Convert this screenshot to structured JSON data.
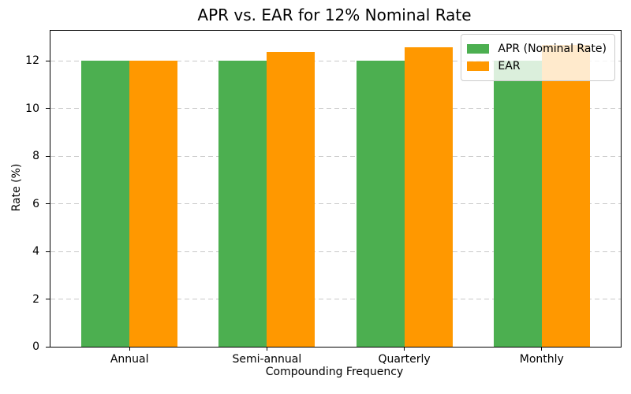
{
  "figure": {
    "background": "#ffffff"
  },
  "chart_data": {
    "type": "bar",
    "title": "APR vs. EAR for 12% Nominal Rate",
    "xlabel": "Compounding Frequency",
    "ylabel": "Rate (%)",
    "categories": [
      "Annual",
      "Semi-annual",
      "Quarterly",
      "Monthly"
    ],
    "series": [
      {
        "name": "APR (Nominal Rate)",
        "color": "#4caf50",
        "values": [
          12.0,
          12.0,
          12.0,
          12.0
        ]
      },
      {
        "name": "EAR",
        "color": "#ff9800",
        "values": [
          12.0,
          12.36,
          12.55,
          12.68
        ]
      }
    ],
    "ylim": [
      0,
      13.26
    ],
    "xlim": [
      -0.575,
      3.575
    ],
    "yticks": [
      0,
      2,
      4,
      6,
      8,
      10,
      12
    ],
    "bar_width_units": 0.35,
    "grid": "horizontal-dashed",
    "gridline_color": "#c9c9c9",
    "legend_position": "upper-right",
    "legend_frame_color": "#cccccc"
  }
}
